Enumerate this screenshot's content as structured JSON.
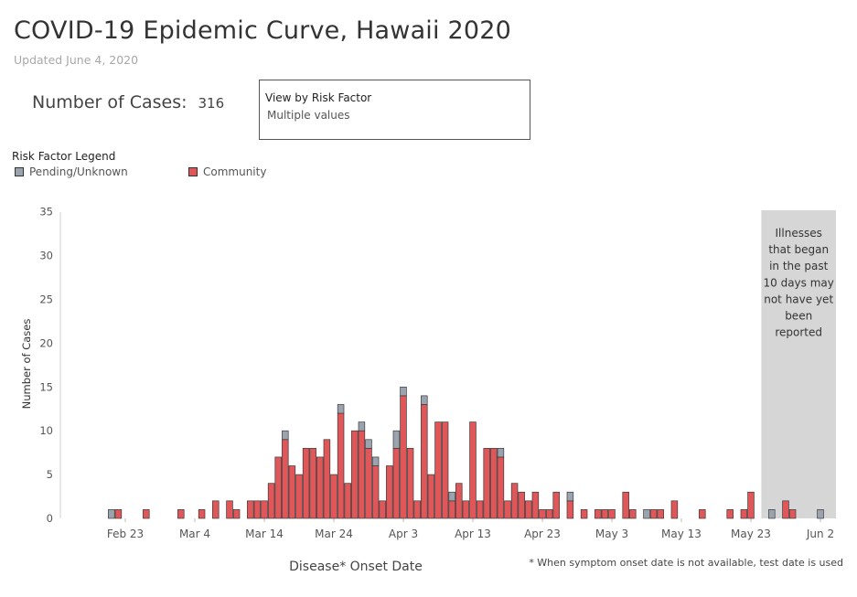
{
  "header": {
    "title": "COVID-19 Epidemic Curve, Hawaii 2020",
    "updated": "Updated June 4, 2020"
  },
  "summary": {
    "cases_label": "Number of Cases:",
    "cases_value": "316"
  },
  "filter": {
    "title": "View by Risk Factor",
    "value": "Multiple values"
  },
  "legend": {
    "title": "Risk Factor Legend",
    "items": [
      {
        "label": "Pending/Unknown",
        "color": "#9ba4ae"
      },
      {
        "label": "Community",
        "color": "#e05759"
      }
    ]
  },
  "footnote": "* When symptom onset date is not available, test date is used",
  "chart_data": {
    "type": "bar",
    "stacked": true,
    "xlabel": "Disease* Onset Date",
    "ylabel": "Number of Cases",
    "ylim": [
      0,
      35
    ],
    "yticks": [
      0,
      5,
      10,
      15,
      20,
      25,
      30,
      35
    ],
    "grid": false,
    "legend_position": "top-left",
    "x_start": "Feb 16",
    "x_end": "Jun 4",
    "xticks": [
      "Feb 23",
      "Mar 4",
      "Mar 14",
      "Mar 24",
      "Apr 3",
      "Apr 13",
      "Apr 23",
      "May 3",
      "May 13",
      "May 23",
      "Jun 2"
    ],
    "series": [
      {
        "name": "Community",
        "color": "#e05759",
        "points": [
          [
            "Feb 22",
            1
          ],
          [
            "Feb 26",
            1
          ],
          [
            "Mar 2",
            1
          ],
          [
            "Mar 3",
            0
          ],
          [
            "Mar 5",
            1
          ],
          [
            "Mar 7",
            2
          ],
          [
            "Mar 9",
            2
          ],
          [
            "Mar 10",
            1
          ],
          [
            "Mar 12",
            2
          ],
          [
            "Mar 13",
            2
          ],
          [
            "Mar 14",
            2
          ],
          [
            "Mar 15",
            4
          ],
          [
            "Mar 16",
            7
          ],
          [
            "Mar 17",
            9
          ],
          [
            "Mar 18",
            6
          ],
          [
            "Mar 19",
            5
          ],
          [
            "Mar 20",
            8
          ],
          [
            "Mar 21",
            8
          ],
          [
            "Mar 22",
            7
          ],
          [
            "Mar 23",
            9
          ],
          [
            "Mar 24",
            5
          ],
          [
            "Mar 25",
            12
          ],
          [
            "Mar 26",
            4
          ],
          [
            "Mar 27",
            10
          ],
          [
            "Mar 28",
            10
          ],
          [
            "Mar 29",
            8
          ],
          [
            "Mar 30",
            6
          ],
          [
            "Mar 31",
            2
          ],
          [
            "Apr 1",
            6
          ],
          [
            "Apr 2",
            8
          ],
          [
            "Apr 3",
            14
          ],
          [
            "Apr 4",
            8
          ],
          [
            "Apr 5",
            2
          ],
          [
            "Apr 6",
            13
          ],
          [
            "Apr 7",
            5
          ],
          [
            "Apr 8",
            11
          ],
          [
            "Apr 9",
            11
          ],
          [
            "Apr 10",
            2
          ],
          [
            "Apr 11",
            4
          ],
          [
            "Apr 12",
            2
          ],
          [
            "Apr 13",
            11
          ],
          [
            "Apr 14",
            2
          ],
          [
            "Apr 15",
            8
          ],
          [
            "Apr 16",
            8
          ],
          [
            "Apr 17",
            7
          ],
          [
            "Apr 18",
            2
          ],
          [
            "Apr 19",
            4
          ],
          [
            "Apr 20",
            3
          ],
          [
            "Apr 21",
            2
          ],
          [
            "Apr 22",
            3
          ],
          [
            "Apr 23",
            1
          ],
          [
            "Apr 24",
            1
          ],
          [
            "Apr 25",
            3
          ],
          [
            "Apr 27",
            2
          ],
          [
            "Apr 29",
            1
          ],
          [
            "May 1",
            1
          ],
          [
            "May 2",
            1
          ],
          [
            "May 3",
            1
          ],
          [
            "May 5",
            3
          ],
          [
            "May 6",
            1
          ],
          [
            "May 9",
            1
          ],
          [
            "May 10",
            1
          ],
          [
            "May 12",
            2
          ],
          [
            "May 16",
            1
          ],
          [
            "May 20",
            1
          ],
          [
            "May 22",
            1
          ],
          [
            "May 23",
            3
          ],
          [
            "May 26",
            0
          ],
          [
            "May 28",
            2
          ],
          [
            "May 29",
            1
          ],
          [
            "Jun 2",
            0
          ]
        ]
      },
      {
        "name": "Pending/Unknown",
        "color": "#9ba4ae",
        "points": [
          [
            "Feb 21",
            1
          ],
          [
            "Mar 17",
            1
          ],
          [
            "Mar 25",
            1
          ],
          [
            "Mar 28",
            1
          ],
          [
            "Mar 29",
            1
          ],
          [
            "Mar 30",
            1
          ],
          [
            "Apr 2",
            2
          ],
          [
            "Apr 3",
            1
          ],
          [
            "Apr 6",
            1
          ],
          [
            "Apr 10",
            1
          ],
          [
            "Apr 17",
            1
          ],
          [
            "Apr 27",
            1
          ],
          [
            "May 8",
            1
          ],
          [
            "May 26",
            1
          ],
          [
            "Jun 2",
            1
          ]
        ]
      }
    ],
    "annotation": {
      "text": "Illnesses that began in the past 10 days may not have yet been reported",
      "lines": [
        "Illnesses",
        "that began",
        "in the past",
        "10 days may",
        "not have yet",
        "been",
        "reported"
      ],
      "from": "May 25",
      "to": "Jun 4",
      "color": "#d6d6d6"
    }
  }
}
